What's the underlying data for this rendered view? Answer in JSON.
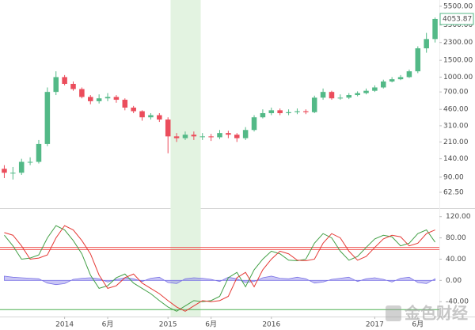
{
  "chart_data": [
    {
      "type": "candlestick",
      "log": true,
      "xlim": [
        -0.5,
        50.5
      ],
      "ylim": [
        43.5,
        6400
      ],
      "yticks": [
        {
          "value": 5500,
          "label": "5500.00"
        },
        {
          "value": 3500,
          "label": "3500.00"
        },
        {
          "value": 2300,
          "label": "2300.00"
        },
        {
          "value": 1500,
          "label": "1500.00"
        },
        {
          "value": 1000,
          "label": "1000.00"
        },
        {
          "value": 700,
          "label": "700.00"
        },
        {
          "value": 460,
          "label": "460.00"
        },
        {
          "value": 310,
          "label": "310.00"
        },
        {
          "value": 210,
          "label": "210.00"
        },
        {
          "value": 140,
          "label": "140.00"
        },
        {
          "value": 90,
          "label": "90.00"
        },
        {
          "value": 62.5,
          "label": "62.50"
        }
      ],
      "xticks": [
        {
          "value": 7,
          "label": "2014"
        },
        {
          "value": 12,
          "label": "6月"
        },
        {
          "value": 19,
          "label": "2015"
        },
        {
          "value": 24,
          "label": "6月"
        },
        {
          "value": 31,
          "label": "2016"
        },
        {
          "value": 43,
          "label": "2017"
        },
        {
          "value": 48,
          "label": "6月"
        }
      ],
      "up_color": "#53b987",
      "down_color": "#eb4d5c",
      "shaded_xrange": [
        19.3,
        22.8
      ],
      "shade_color": "#e3f3e1",
      "open": [
        110,
        100,
        100,
        130,
        130,
        200,
        700,
        1000,
        850,
        750,
        620,
        560,
        600,
        620,
        580,
        480,
        440,
        380,
        400,
        360,
        240,
        230,
        250,
        240,
        240,
        235,
        260,
        250,
        230,
        280,
        380,
        420,
        450,
        420,
        430,
        440,
        430,
        610,
        700,
        600,
        610,
        650,
        680,
        720,
        780,
        900,
        950,
        1000,
        1150,
        2000,
        2500
      ],
      "high": [
        120,
        115,
        140,
        145,
        220,
        780,
        1150,
        1050,
        900,
        780,
        650,
        660,
        680,
        650,
        600,
        500,
        450,
        420,
        420,
        380,
        260,
        270,
        270,
        260,
        255,
        280,
        275,
        260,
        300,
        400,
        460,
        480,
        470,
        460,
        470,
        460,
        640,
        760,
        720,
        660,
        680,
        710,
        760,
        820,
        940,
        1000,
        1050,
        1200,
        2100,
        2900,
        4200
      ],
      "low": [
        88,
        85,
        95,
        120,
        125,
        190,
        650,
        820,
        720,
        600,
        520,
        530,
        560,
        540,
        450,
        420,
        350,
        360,
        340,
        160,
        210,
        220,
        220,
        220,
        215,
        225,
        230,
        210,
        220,
        270,
        370,
        400,
        400,
        400,
        410,
        410,
        420,
        580,
        580,
        580,
        590,
        630,
        660,
        700,
        760,
        880,
        930,
        980,
        1100,
        1800,
        2300
      ],
      "close": [
        100,
        100,
        130,
        130,
        200,
        700,
        1000,
        850,
        750,
        620,
        560,
        600,
        620,
        580,
        480,
        440,
        380,
        400,
        360,
        240,
        230,
        250,
        240,
        240,
        235,
        260,
        250,
        230,
        280,
        380,
        420,
        450,
        420,
        430,
        440,
        430,
        610,
        700,
        600,
        610,
        650,
        680,
        720,
        780,
        900,
        950,
        1000,
        1150,
        2000,
        2500,
        4053.87
      ]
    },
    {
      "type": "line",
      "xlim": [
        -0.5,
        50.5
      ],
      "ylim": [
        -68,
        133
      ],
      "yticks": [
        {
          "value": 120,
          "label": "120.00"
        },
        {
          "value": 80,
          "label": "80.00"
        },
        {
          "value": 40,
          "label": "40.00"
        },
        {
          "value": 0,
          "label": "0.00"
        },
        {
          "value": -40,
          "label": "-40.00"
        }
      ],
      "levels": [
        {
          "value": 62,
          "color": "#ef5350"
        },
        {
          "value": 58,
          "color": "#ef5350"
        },
        {
          "value": -55,
          "color": "#4caf50"
        }
      ],
      "area": {
        "color": "#7b73e6",
        "values": [
          8,
          6,
          5,
          4,
          3,
          -5,
          -8,
          -6,
          2,
          4,
          5,
          3,
          -3,
          2,
          5,
          3,
          -2,
          4,
          6,
          -4,
          -6,
          3,
          5,
          4,
          2,
          -2,
          6,
          3,
          -4,
          -2,
          5,
          8,
          4,
          3,
          6,
          3,
          -5,
          -3,
          2,
          4,
          6,
          -2,
          3,
          5,
          2,
          -3,
          4,
          6,
          -4,
          -6,
          3
        ]
      },
      "series": [
        {
          "color": "#43a047",
          "values": [
            85,
            65,
            40,
            42,
            48,
            80,
            103,
            95,
            75,
            50,
            10,
            -15,
            -10,
            5,
            12,
            -5,
            -15,
            -25,
            -38,
            -50,
            -58,
            -48,
            -38,
            -40,
            -38,
            -30,
            5,
            15,
            -12,
            20,
            40,
            55,
            50,
            38,
            37,
            40,
            70,
            88,
            80,
            55,
            38,
            45,
            62,
            78,
            85,
            82,
            65,
            70,
            88,
            95,
            72
          ]
        },
        {
          "color": "#e53935",
          "values": [
            90,
            85,
            65,
            40,
            42,
            48,
            80,
            103,
            95,
            75,
            50,
            10,
            -15,
            -10,
            5,
            12,
            -5,
            -15,
            -25,
            -38,
            -50,
            -58,
            -48,
            -38,
            -40,
            -38,
            -30,
            5,
            15,
            -12,
            20,
            40,
            55,
            50,
            38,
            37,
            40,
            70,
            88,
            80,
            55,
            38,
            45,
            62,
            78,
            85,
            82,
            65,
            70,
            88,
            95
          ]
        }
      ]
    }
  ],
  "watermark": "金色财经"
}
